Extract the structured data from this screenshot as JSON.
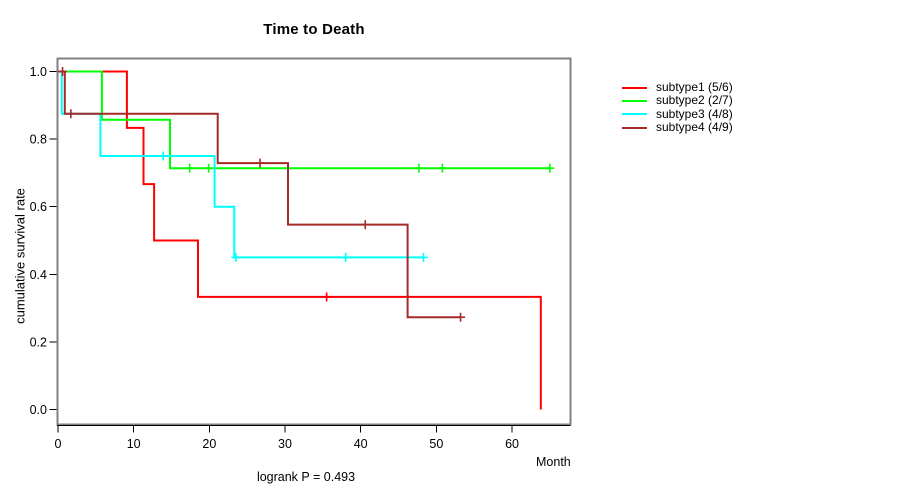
{
  "chart_data": {
    "type": "line",
    "variant": "kaplan-meier-step-survival",
    "title": "Time to Death",
    "xlabel": "Month",
    "ylabel": "cumulative survival rate",
    "caption": "logrank P = 0.493",
    "grid": false,
    "legend_position": "right-outside",
    "xlim": [
      0,
      67.7
    ],
    "ylim": [
      0.0,
      1.0
    ],
    "xticks": [
      "0",
      "10",
      "20",
      "30",
      "40",
      "50",
      "60"
    ],
    "yticks": [
      "0.0",
      "0.2",
      "0.4",
      "0.6",
      "0.8",
      "1.0"
    ],
    "axis_box_color": "#808080",
    "axis_line_color": "#000000",
    "series": [
      {
        "name": "subtype1 (5/6)",
        "color": "#FF0000",
        "steps": [
          [
            0,
            1.0
          ],
          [
            9.1,
            1.0
          ],
          [
            9.1,
            0.833
          ],
          [
            11.3,
            0.833
          ],
          [
            11.3,
            0.667
          ],
          [
            12.7,
            0.667
          ],
          [
            12.7,
            0.5
          ],
          [
            18.5,
            0.5
          ],
          [
            18.5,
            0.333
          ],
          [
            63.8,
            0.333
          ],
          [
            63.8,
            0.0
          ]
        ],
        "censor_marks": [
          [
            35.5,
            0.333
          ]
        ]
      },
      {
        "name": "subtype2 (2/7)",
        "color": "#00FF00",
        "steps": [
          [
            0,
            1.0
          ],
          [
            5.8,
            1.0
          ],
          [
            5.8,
            0.857
          ],
          [
            14.8,
            0.857
          ],
          [
            14.8,
            0.714
          ],
          [
            65.0,
            0.714
          ]
        ],
        "censor_marks": [
          [
            17.4,
            0.714
          ],
          [
            19.9,
            0.714
          ],
          [
            47.7,
            0.714
          ],
          [
            50.8,
            0.714
          ],
          [
            65.0,
            0.714
          ]
        ]
      },
      {
        "name": "subtype3 (4/8)",
        "color": "#00FFFF",
        "steps": [
          [
            0,
            1.0
          ],
          [
            0.5,
            1.0
          ],
          [
            0.5,
            0.875
          ],
          [
            5.6,
            0.875
          ],
          [
            5.6,
            0.75
          ],
          [
            20.7,
            0.75
          ],
          [
            20.7,
            0.6
          ],
          [
            23.3,
            0.6
          ],
          [
            23.3,
            0.45
          ],
          [
            48.3,
            0.45
          ]
        ],
        "censor_marks": [
          [
            13.9,
            0.75
          ],
          [
            23.5,
            0.45
          ],
          [
            38.0,
            0.45
          ],
          [
            48.3,
            0.45
          ]
        ]
      },
      {
        "name": "subtype4 (4/9)",
        "color": "#A52A2A",
        "steps": [
          [
            0,
            1.0
          ],
          [
            0.9,
            1.0
          ],
          [
            0.9,
            0.875
          ],
          [
            21.1,
            0.875
          ],
          [
            21.1,
            0.729
          ],
          [
            30.4,
            0.729
          ],
          [
            30.4,
            0.547
          ],
          [
            46.2,
            0.547
          ],
          [
            46.2,
            0.273
          ],
          [
            53.2,
            0.273
          ]
        ],
        "censor_marks": [
          [
            0.6,
            1.0
          ],
          [
            1.7,
            0.875
          ],
          [
            26.7,
            0.729
          ],
          [
            40.6,
            0.547
          ],
          [
            53.2,
            0.273
          ]
        ]
      }
    ]
  }
}
